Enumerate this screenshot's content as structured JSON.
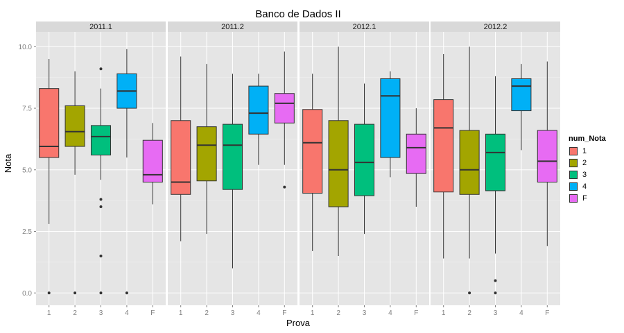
{
  "chart_data": {
    "type": "box",
    "title": "Banco de Dados II",
    "xlabel": "Prova",
    "ylabel": "Nota",
    "ylim": [
      -0.5,
      10.6
    ],
    "yticks": [
      "0.0",
      "2.5",
      "5.0",
      "7.5",
      "10.0"
    ],
    "grid": true,
    "legend_position": "right",
    "legend_title": "num_Nota",
    "categories": [
      "1",
      "2",
      "3",
      "4",
      "F"
    ],
    "colors": {
      "1": "#F8766D",
      "2": "#A3A500",
      "3": "#00BF7D",
      "4": "#00B0F6",
      "F": "#E76BF3"
    },
    "panels": [
      {
        "label": "2011.1",
        "boxes": [
          {
            "category": "1",
            "q1": 5.5,
            "median": 5.95,
            "q3": 8.3,
            "whisker_low": 2.8,
            "whisker_high": 9.5,
            "outliers": [
              0.0
            ]
          },
          {
            "category": "2",
            "q1": 5.95,
            "median": 6.55,
            "q3": 7.6,
            "whisker_low": 4.8,
            "whisker_high": 9.0,
            "outliers": [
              0.0
            ]
          },
          {
            "category": "3",
            "q1": 5.6,
            "median": 6.35,
            "q3": 6.8,
            "whisker_low": 4.6,
            "whisker_high": 8.3,
            "outliers": [
              9.1,
              3.8,
              3.5,
              1.5,
              0.0
            ]
          },
          {
            "category": "4",
            "q1": 7.5,
            "median": 8.2,
            "q3": 8.9,
            "whisker_low": 5.5,
            "whisker_high": 9.9,
            "outliers": [
              0.0
            ]
          },
          {
            "category": "F",
            "q1": 4.5,
            "median": 4.8,
            "q3": 6.2,
            "whisker_low": 3.6,
            "whisker_high": 6.9,
            "outliers": []
          }
        ]
      },
      {
        "label": "2011.2",
        "boxes": [
          {
            "category": "1",
            "q1": 4.0,
            "median": 4.5,
            "q3": 7.0,
            "whisker_low": 2.1,
            "whisker_high": 9.6,
            "outliers": []
          },
          {
            "category": "2",
            "q1": 4.55,
            "median": 6.0,
            "q3": 6.75,
            "whisker_low": 2.4,
            "whisker_high": 9.3,
            "outliers": []
          },
          {
            "category": "3",
            "q1": 4.2,
            "median": 6.0,
            "q3": 6.85,
            "whisker_low": 1.0,
            "whisker_high": 8.9,
            "outliers": []
          },
          {
            "category": "4",
            "q1": 6.45,
            "median": 7.3,
            "q3": 8.4,
            "whisker_low": 5.2,
            "whisker_high": 8.9,
            "outliers": []
          },
          {
            "category": "F",
            "q1": 6.9,
            "median": 7.7,
            "q3": 8.1,
            "whisker_low": 5.2,
            "whisker_high": 9.8,
            "outliers": [
              4.3
            ]
          }
        ]
      },
      {
        "label": "2012.1",
        "boxes": [
          {
            "category": "1",
            "q1": 4.05,
            "median": 6.1,
            "q3": 7.45,
            "whisker_low": 1.7,
            "whisker_high": 8.9,
            "outliers": []
          },
          {
            "category": "2",
            "q1": 3.5,
            "median": 5.0,
            "q3": 7.0,
            "whisker_low": 1.5,
            "whisker_high": 10.0,
            "outliers": []
          },
          {
            "category": "3",
            "q1": 3.95,
            "median": 5.3,
            "q3": 6.85,
            "whisker_low": 2.4,
            "whisker_high": 8.5,
            "outliers": []
          },
          {
            "category": "4",
            "q1": 5.5,
            "median": 8.0,
            "q3": 8.7,
            "whisker_low": 4.7,
            "whisker_high": 9.0,
            "outliers": []
          },
          {
            "category": "F",
            "q1": 4.85,
            "median": 5.9,
            "q3": 6.45,
            "whisker_low": 3.5,
            "whisker_high": 7.5,
            "outliers": []
          }
        ]
      },
      {
        "label": "2012.2",
        "boxes": [
          {
            "category": "1",
            "q1": 4.1,
            "median": 6.7,
            "q3": 7.85,
            "whisker_low": 1.4,
            "whisker_high": 9.7,
            "outliers": []
          },
          {
            "category": "2",
            "q1": 4.0,
            "median": 5.0,
            "q3": 6.6,
            "whisker_low": 1.4,
            "whisker_high": 10.0,
            "outliers": [
              0.0
            ]
          },
          {
            "category": "3",
            "q1": 4.15,
            "median": 5.7,
            "q3": 6.45,
            "whisker_low": 1.6,
            "whisker_high": 8.8,
            "outliers": [
              0.5,
              0.0
            ]
          },
          {
            "category": "4",
            "q1": 7.4,
            "median": 8.4,
            "q3": 8.7,
            "whisker_low": 5.8,
            "whisker_high": 9.3,
            "outliers": []
          },
          {
            "category": "F",
            "q1": 4.5,
            "median": 5.35,
            "q3": 6.6,
            "whisker_low": 1.9,
            "whisker_high": 9.4,
            "outliers": []
          }
        ]
      }
    ]
  }
}
